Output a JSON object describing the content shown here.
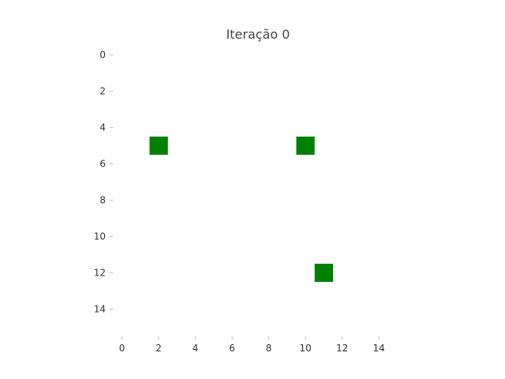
{
  "chart_data": {
    "type": "heatmap",
    "title": "Iteração 0",
    "xlabel": "",
    "ylabel": "",
    "grid_size": [
      16,
      16
    ],
    "xlim": [
      -0.5,
      15.5
    ],
    "ylim": [
      15.5,
      -0.5
    ],
    "x_ticks": [
      0,
      2,
      4,
      6,
      8,
      10,
      12,
      14
    ],
    "y_ticks": [
      0,
      2,
      4,
      6,
      8,
      10,
      12,
      14
    ],
    "x_tick_labels": [
      "0",
      "2",
      "4",
      "6",
      "8",
      "10",
      "12",
      "14"
    ],
    "y_tick_labels": [
      "0",
      "2",
      "4",
      "6",
      "8",
      "10",
      "12",
      "14"
    ],
    "grid": false,
    "background_color": "#ffffff",
    "cell_color": "#008000",
    "cells": [
      {
        "x": 2,
        "y": 5
      },
      {
        "x": 10,
        "y": 5
      },
      {
        "x": 11,
        "y": 12
      }
    ]
  }
}
